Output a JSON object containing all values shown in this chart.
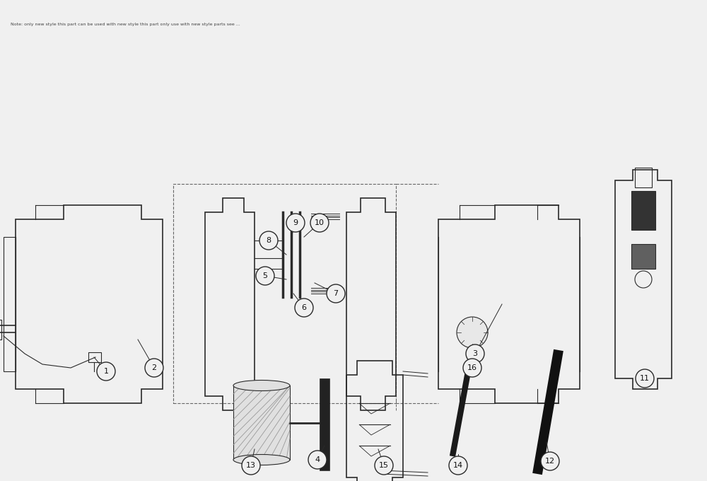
{
  "bg_color": "#f0f0f0",
  "line_color": "#2a2a2a",
  "figure_width": 10.0,
  "figure_height": 6.8,
  "dpi": 100,
  "note_text": "Note: only new style this part can be used with new style this part only use with new style parts see ..."
}
